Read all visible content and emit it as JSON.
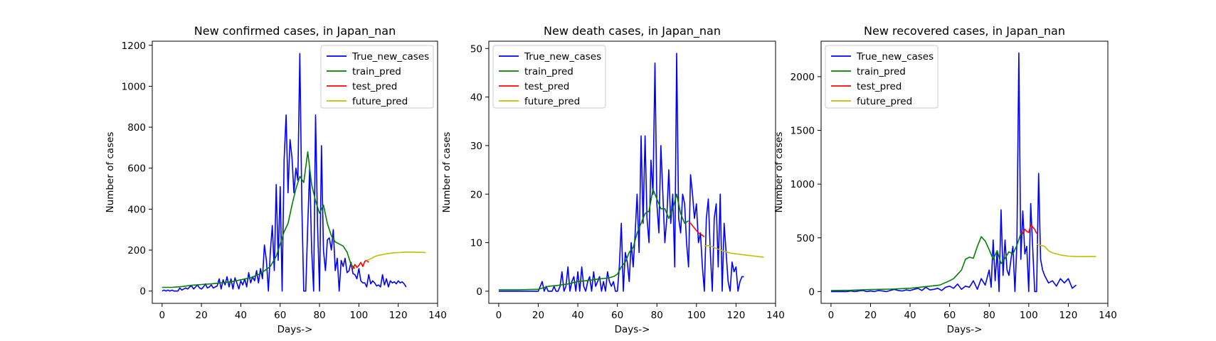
{
  "figure": {
    "background": "#ffffff"
  },
  "colors": {
    "true_new_cases": "#0000ff",
    "train_pred": "#008000",
    "test_pred": "#ff0000",
    "future_pred": "#bfbf00"
  },
  "chart_data": [
    {
      "type": "line",
      "title": "New confirmed cases, in Japan_nan",
      "xlabel": "Days->",
      "ylabel": "Number of cases",
      "xlim": [
        -5,
        140
      ],
      "ylim": [
        -60,
        1220
      ],
      "xticks": [
        0,
        20,
        40,
        60,
        80,
        100,
        120,
        140
      ],
      "yticks": [
        0,
        200,
        400,
        600,
        800,
        1000,
        1200
      ],
      "legend_position": "upper right",
      "grid": false,
      "series": [
        {
          "name": "True_new_cases",
          "color": "#0000ff",
          "x": [
            0,
            1,
            2,
            3,
            4,
            5,
            6,
            7,
            8,
            9,
            10,
            11,
            12,
            13,
            14,
            15,
            16,
            17,
            18,
            19,
            20,
            21,
            22,
            23,
            24,
            25,
            26,
            27,
            28,
            29,
            30,
            31,
            32,
            33,
            34,
            35,
            36,
            37,
            38,
            39,
            40,
            41,
            42,
            43,
            44,
            45,
            46,
            47,
            48,
            49,
            50,
            51,
            52,
            53,
            54,
            55,
            56,
            57,
            58,
            59,
            60,
            61,
            62,
            63,
            64,
            65,
            66,
            67,
            68,
            69,
            70,
            71,
            72,
            73,
            74,
            75,
            76,
            77,
            78,
            79,
            80,
            81,
            82,
            83,
            84,
            85,
            86,
            87,
            88,
            89,
            90,
            91,
            92,
            93,
            94,
            95,
            96,
            97,
            98,
            99,
            100,
            101,
            102,
            103,
            104,
            105,
            106,
            107,
            108,
            109,
            110,
            111,
            112,
            113,
            114,
            115,
            116,
            117,
            118,
            119,
            120,
            121,
            122,
            123,
            124
          ],
          "y": [
            0,
            5,
            0,
            5,
            0,
            5,
            0,
            0,
            0,
            15,
            5,
            10,
            15,
            10,
            20,
            25,
            10,
            20,
            30,
            15,
            10,
            20,
            35,
            15,
            20,
            30,
            15,
            20,
            25,
            60,
            10,
            55,
            30,
            70,
            20,
            60,
            10,
            65,
            40,
            10,
            50,
            30,
            60,
            20,
            90,
            40,
            70,
            50,
            100,
            40,
            110,
            60,
            225,
            150,
            0,
            190,
            320,
            100,
            520,
            150,
            510,
            0,
            640,
            860,
            480,
            740,
            650,
            480,
            600,
            540,
            1160,
            420,
            0,
            0,
            320,
            600,
            200,
            0,
            860,
            320,
            0,
            710,
            200,
            100,
            250,
            260,
            200,
            300,
            100,
            160,
            0,
            150,
            120,
            160,
            90,
            100,
            140,
            85,
            80,
            60,
            110,
            50,
            40,
            40,
            20,
            80,
            35,
            50,
            40,
            25,
            30,
            20,
            80,
            30,
            60,
            20,
            50,
            40,
            45,
            35,
            50,
            40,
            45,
            35,
            20
          ]
        },
        {
          "name": "train_pred",
          "color": "#008000",
          "x": [
            0,
            5,
            10,
            15,
            20,
            25,
            30,
            35,
            40,
            45,
            50,
            55,
            58,
            60,
            62,
            64,
            66,
            68,
            70,
            72,
            74,
            76,
            78,
            80,
            82,
            84,
            86,
            88,
            90,
            92,
            94,
            96,
            98
          ],
          "y": [
            18,
            18,
            22,
            28,
            32,
            35,
            40,
            45,
            55,
            65,
            85,
            120,
            170,
            230,
            290,
            330,
            420,
            500,
            560,
            530,
            680,
            520,
            440,
            380,
            420,
            330,
            270,
            240,
            230,
            220,
            190,
            130,
            110
          ]
        },
        {
          "name": "test_pred",
          "color": "#ff0000",
          "x": [
            96,
            97,
            98,
            99,
            100,
            101,
            102,
            103,
            104,
            105
          ],
          "y": [
            120,
            110,
            130,
            115,
            125,
            140,
            120,
            145,
            150,
            140
          ]
        },
        {
          "name": "future_pred",
          "color": "#bfbf00",
          "x": [
            104,
            106,
            108,
            110,
            112,
            114,
            116,
            118,
            120,
            122,
            124,
            126,
            128,
            130,
            132,
            134
          ],
          "y": [
            148,
            158,
            168,
            175,
            178,
            182,
            185,
            187,
            188,
            189,
            190,
            190,
            190,
            189,
            189,
            188
          ]
        }
      ]
    },
    {
      "type": "line",
      "title": "New death cases, in Japan_nan",
      "xlabel": "Days->",
      "ylabel": "Number of cases",
      "xlim": [
        -5,
        140
      ],
      "ylim": [
        -2.5,
        51.5
      ],
      "xticks": [
        0,
        20,
        40,
        60,
        80,
        100,
        120,
        140
      ],
      "yticks": [
        0,
        10,
        20,
        30,
        40,
        50
      ],
      "legend_position": "upper left",
      "grid": false,
      "series": [
        {
          "name": "True_new_cases",
          "color": "#0000ff",
          "x": [
            0,
            1,
            2,
            3,
            4,
            5,
            6,
            7,
            8,
            9,
            10,
            11,
            12,
            13,
            14,
            15,
            16,
            17,
            18,
            19,
            20,
            21,
            22,
            23,
            24,
            25,
            26,
            27,
            28,
            29,
            30,
            31,
            32,
            33,
            34,
            35,
            36,
            37,
            38,
            39,
            40,
            41,
            42,
            43,
            44,
            45,
            46,
            47,
            48,
            49,
            50,
            51,
            52,
            53,
            54,
            55,
            56,
            57,
            58,
            59,
            60,
            61,
            62,
            63,
            64,
            65,
            66,
            67,
            68,
            69,
            70,
            71,
            72,
            73,
            74,
            75,
            76,
            77,
            78,
            79,
            80,
            81,
            82,
            83,
            84,
            85,
            86,
            87,
            88,
            89,
            90,
            91,
            92,
            93,
            94,
            95,
            96,
            97,
            98,
            99,
            100,
            101,
            102,
            103,
            104,
            105,
            106,
            107,
            108,
            109,
            110,
            111,
            112,
            113,
            114,
            115,
            116,
            117,
            118,
            119,
            120,
            121,
            122,
            123,
            124
          ],
          "y": [
            0,
            0,
            0,
            0,
            0,
            0,
            0,
            0,
            0,
            0,
            0,
            0,
            0,
            0,
            0,
            0,
            0,
            0,
            0,
            0,
            0,
            1,
            2,
            0,
            1,
            0,
            0,
            0,
            1,
            0,
            0,
            1,
            4,
            0,
            1,
            5,
            0,
            2,
            3,
            0,
            4,
            0,
            5,
            1,
            0,
            2,
            3,
            0,
            4,
            1,
            2,
            3,
            0,
            2,
            0,
            4,
            2,
            1,
            2,
            0,
            0,
            5,
            14,
            0,
            8,
            6,
            2,
            10,
            5,
            12,
            20,
            8,
            32,
            14,
            32,
            15,
            10,
            27,
            20,
            47,
            18,
            12,
            30,
            20,
            10,
            15,
            25,
            14,
            20,
            5,
            49,
            15,
            12,
            20,
            18,
            10,
            5,
            24,
            20,
            15,
            18,
            10,
            12,
            5,
            0,
            15,
            19,
            8,
            0,
            15,
            18,
            5,
            20,
            0,
            14,
            8,
            2,
            0,
            6,
            4,
            5,
            0,
            2,
            3,
            3
          ]
        },
        {
          "name": "train_pred",
          "color": "#008000",
          "x": [
            0,
            10,
            20,
            25,
            30,
            35,
            40,
            45,
            50,
            55,
            58,
            60,
            62,
            64,
            66,
            68,
            70,
            72,
            74,
            76,
            78,
            80,
            82,
            84,
            86,
            88,
            90,
            92,
            94,
            96
          ],
          "y": [
            0.3,
            0.3,
            0.4,
            1.0,
            1.2,
            1.5,
            2.0,
            2.2,
            2.5,
            2.7,
            3.0,
            3.5,
            5.0,
            6.0,
            8.0,
            9.0,
            12.0,
            14.0,
            16.0,
            16.5,
            21.0,
            19.0,
            17.0,
            17.0,
            15.0,
            17.0,
            20.0,
            16.0,
            14.0,
            14.5
          ]
        },
        {
          "name": "test_pred",
          "color": "#ff0000",
          "x": [
            96,
            97,
            98,
            99,
            100,
            101,
            102,
            103,
            104
          ],
          "y": [
            14.0,
            14.0,
            13.5,
            13.0,
            12.5,
            12.0,
            11.8,
            11.5,
            11.2
          ]
        },
        {
          "name": "future_pred",
          "color": "#bfbf00",
          "x": [
            104,
            106,
            108,
            110,
            112,
            114,
            116,
            118,
            120,
            122,
            124,
            126,
            128,
            130,
            132,
            134
          ],
          "y": [
            9.3,
            9.4,
            9.2,
            8.8,
            8.5,
            8.2,
            8.0,
            7.8,
            7.7,
            7.6,
            7.5,
            7.4,
            7.3,
            7.2,
            7.1,
            7.0
          ]
        }
      ]
    },
    {
      "type": "line",
      "title": "New recovered cases, in Japan_nan",
      "xlabel": "Days->",
      "ylabel": "Number of cases",
      "xlim": [
        -5,
        140
      ],
      "ylim": [
        -110,
        2330
      ],
      "xticks": [
        0,
        20,
        40,
        60,
        80,
        100,
        120,
        140
      ],
      "yticks": [
        0,
        500,
        1000,
        1500,
        2000
      ],
      "legend_position": "upper left",
      "grid": false,
      "series": [
        {
          "name": "True_new_cases",
          "color": "#0000ff",
          "x": [
            0,
            2,
            4,
            6,
            8,
            10,
            12,
            14,
            16,
            18,
            20,
            22,
            24,
            26,
            28,
            30,
            32,
            34,
            36,
            38,
            40,
            42,
            44,
            46,
            48,
            50,
            52,
            54,
            56,
            58,
            60,
            62,
            64,
            66,
            68,
            70,
            72,
            74,
            76,
            78,
            80,
            81,
            82,
            83,
            84,
            85,
            86,
            87,
            88,
            89,
            90,
            91,
            92,
            93,
            94,
            95,
            96,
            97,
            98,
            99,
            100,
            101,
            102,
            103,
            104,
            105,
            106,
            107,
            108,
            110,
            112,
            114,
            116,
            118,
            120,
            122,
            124
          ],
          "y": [
            0,
            0,
            0,
            0,
            0,
            5,
            0,
            5,
            10,
            0,
            5,
            0,
            10,
            5,
            0,
            10,
            20,
            10,
            5,
            15,
            10,
            20,
            30,
            10,
            40,
            15,
            20,
            30,
            10,
            40,
            50,
            30,
            70,
            20,
            50,
            40,
            100,
            20,
            120,
            60,
            200,
            40,
            480,
            100,
            380,
            0,
            760,
            150,
            480,
            200,
            150,
            300,
            420,
            0,
            450,
            2220,
            300,
            750,
            350,
            420,
            0,
            820,
            400,
            0,
            0,
            1100,
            300,
            200,
            150,
            80,
            100,
            50,
            120,
            80,
            120,
            30,
            60
          ]
        },
        {
          "name": "train_pred",
          "color": "#008000",
          "x": [
            0,
            10,
            20,
            30,
            40,
            45,
            50,
            55,
            60,
            62,
            64,
            66,
            68,
            70,
            72,
            74,
            76,
            78,
            80,
            82,
            84,
            86,
            88,
            90,
            92,
            94,
            96,
            98
          ],
          "y": [
            10,
            12,
            18,
            22,
            30,
            40,
            50,
            60,
            100,
            120,
            160,
            200,
            300,
            320,
            310,
            420,
            510,
            470,
            390,
            300,
            380,
            260,
            310,
            370,
            350,
            430,
            540,
            560
          ]
        },
        {
          "name": "test_pred",
          "color": "#ff0000",
          "x": [
            96,
            97,
            98,
            99,
            100,
            101,
            102,
            103,
            104
          ],
          "y": [
            560,
            540,
            580,
            560,
            550,
            620,
            600,
            580,
            540
          ]
        },
        {
          "name": "future_pred",
          "color": "#bfbf00",
          "x": [
            104,
            106,
            108,
            110,
            112,
            114,
            116,
            118,
            120,
            122,
            124,
            126,
            128,
            130,
            132,
            134
          ],
          "y": [
            440,
            430,
            420,
            380,
            360,
            350,
            340,
            335,
            330,
            328,
            326,
            325,
            325,
            325,
            326,
            326
          ]
        }
      ]
    }
  ]
}
